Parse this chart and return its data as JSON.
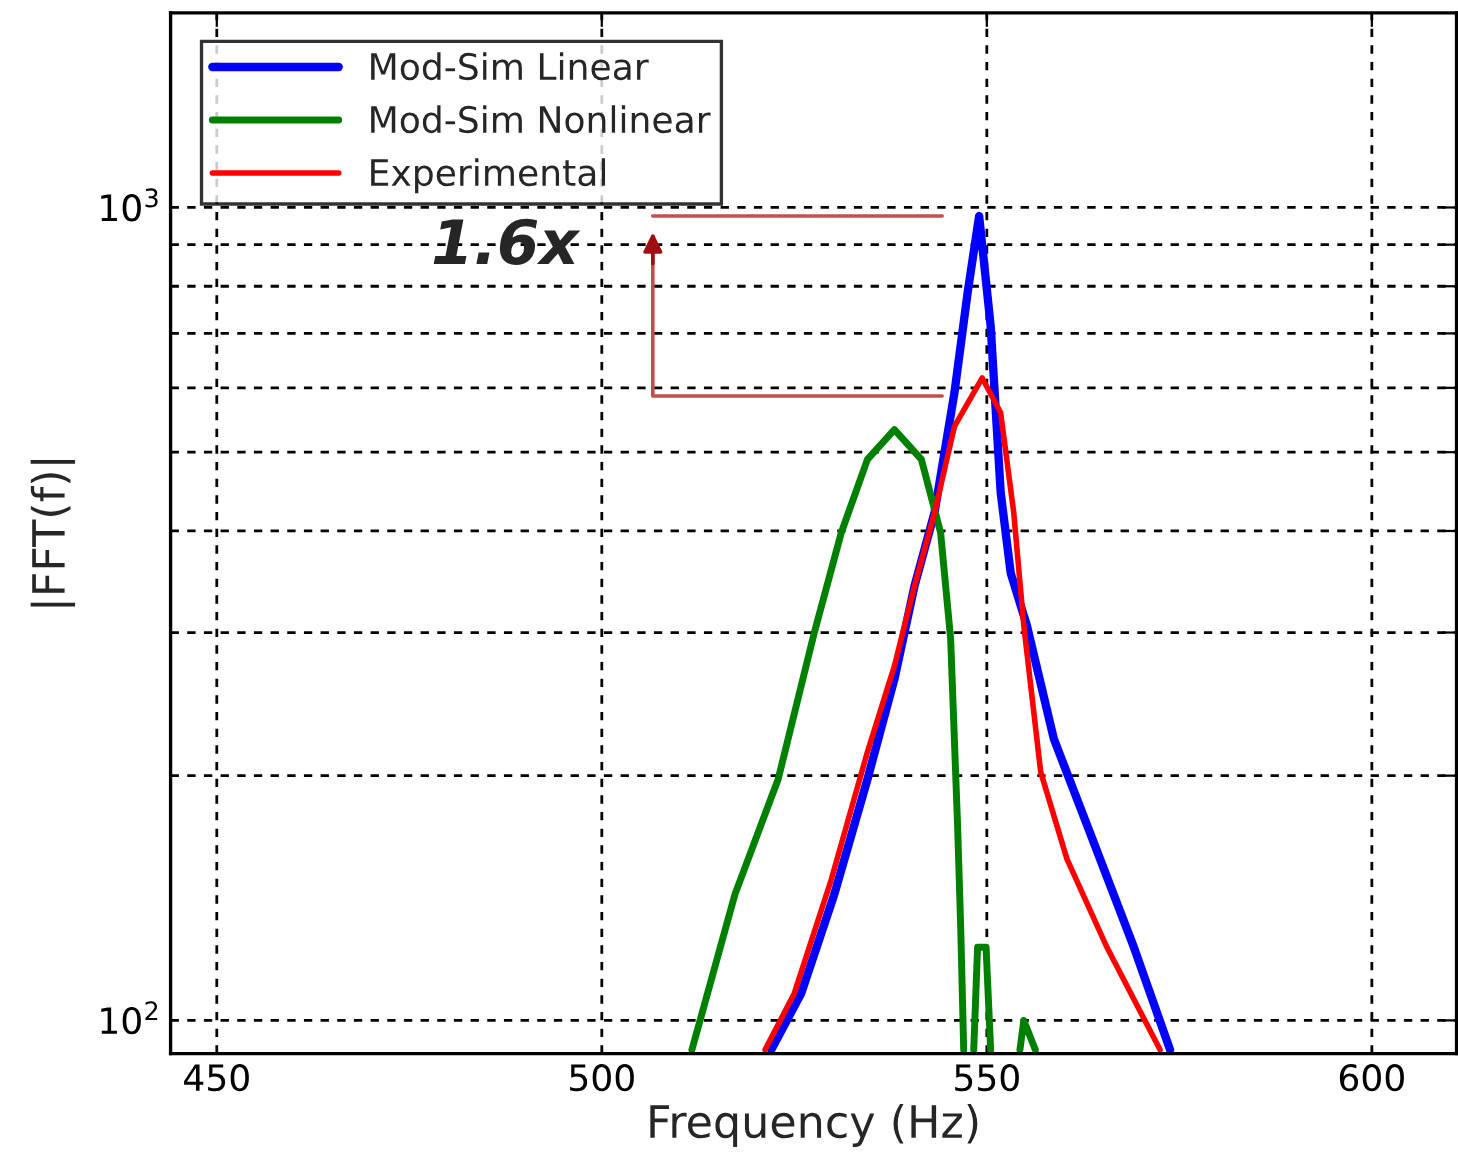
{
  "chart_data": {
    "type": "line",
    "xlabel": "Frequency (Hz)",
    "ylabel": "|FFT(f)|",
    "xlim": [
      444,
      611
    ],
    "xticks": [
      450,
      500,
      550,
      600
    ],
    "ylim": [
      91,
      1735
    ],
    "log": true,
    "yticks": [
      {
        "value": 100,
        "label": "10$^{2}$"
      },
      {
        "value": 200,
        "label": null
      },
      {
        "value": 300,
        "label": null
      },
      {
        "value": 400,
        "label": null
      },
      {
        "value": 500,
        "label": null
      },
      {
        "value": 600,
        "label": null
      },
      {
        "value": 700,
        "label": null
      },
      {
        "value": 800,
        "label": null
      },
      {
        "value": 900,
        "label": null
      },
      {
        "value": 1000,
        "label": "10$^{3}$"
      }
    ],
    "grid": true,
    "legend": "top left",
    "line_style": "solid",
    "annotations": [
      "1.6x"
    ],
    "series": [
      {
        "name": "Mod-Sim Linear",
        "color": "#0000ff",
        "x": [
          522.0,
          525.9,
          530.2,
          534.5,
          538.0,
          540.6,
          543.2,
          545.8,
          547.5,
          549.0,
          550.5,
          551.8,
          553.1,
          555.2,
          558.7,
          563.0,
          569.1,
          573.8
        ],
        "values": [
          92,
          108,
          143,
          198,
          263,
          342,
          421,
          592,
          785,
          976,
          715,
          446,
          355,
          306,
          222,
          174,
          123,
          92
        ]
      },
      {
        "name": "Mod-Sim Nonlinear",
        "color": "#008000",
        "x": [
          511.7,
          517.3,
          522.9,
          527.6,
          531.1,
          534.5,
          538.0,
          541.5,
          544.0,
          545.3,
          546.2,
          546.6,
          547.0,
          547.5,
          548.3,
          548.8,
          549.9,
          550.5,
          552.0,
          554.3,
          554.8,
          556.3
        ],
        "values": [
          92,
          143,
          198,
          300,
          398,
          490,
          533,
          490,
          398,
          295,
          174,
          131,
          92,
          null,
          92,
          123,
          123,
          92,
          null,
          92,
          100,
          92
        ]
      },
      {
        "name": "Experimental",
        "color": "#ff0000",
        "x": [
          521.2,
          525.0,
          529.8,
          534.5,
          538.0,
          540.6,
          543.2,
          545.8,
          549.4,
          551.8,
          553.5,
          554.8,
          557.0,
          560.4,
          565.6,
          572.5
        ],
        "values": [
          92,
          108,
          149,
          214,
          273,
          342,
          421,
          538,
          617,
          559,
          421,
          306,
          202,
          158,
          123,
          92
        ]
      }
    ]
  }
}
